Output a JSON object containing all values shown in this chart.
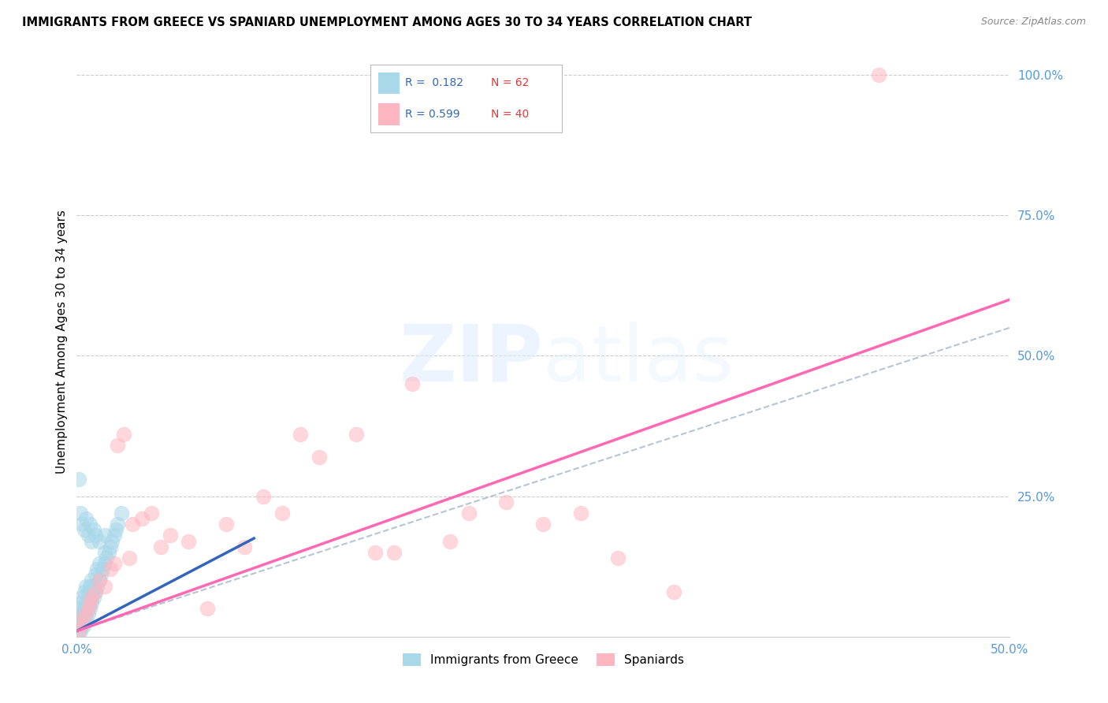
{
  "title": "IMMIGRANTS FROM GREECE VS SPANIARD UNEMPLOYMENT AMONG AGES 30 TO 34 YEARS CORRELATION CHART",
  "source": "Source: ZipAtlas.com",
  "ylabel": "Unemployment Among Ages 30 to 34 years",
  "xlim": [
    0.0,
    0.5
  ],
  "ylim": [
    0.0,
    1.05
  ],
  "xtick_vals": [
    0.0,
    0.1,
    0.2,
    0.3,
    0.4,
    0.5
  ],
  "xtick_labels": [
    "0.0%",
    "",
    "",
    "",
    "",
    "50.0%"
  ],
  "ytick_vals": [
    0.0,
    0.25,
    0.5,
    0.75,
    1.0
  ],
  "ytick_labels": [
    "",
    "25.0%",
    "50.0%",
    "75.0%",
    "100.0%"
  ],
  "color_blue": "#A8D8EA",
  "color_pink": "#FFB6C1",
  "color_blue_line": "#3366BB",
  "color_pink_line": "#FF69B4",
  "color_dash": "#AABBCC",
  "greece_x": [
    0.001,
    0.001,
    0.001,
    0.001,
    0.002,
    0.002,
    0.002,
    0.002,
    0.002,
    0.003,
    0.003,
    0.003,
    0.003,
    0.004,
    0.004,
    0.004,
    0.004,
    0.005,
    0.005,
    0.005,
    0.005,
    0.006,
    0.006,
    0.006,
    0.007,
    0.007,
    0.007,
    0.008,
    0.008,
    0.008,
    0.009,
    0.009,
    0.01,
    0.01,
    0.011,
    0.011,
    0.012,
    0.012,
    0.013,
    0.014,
    0.015,
    0.015,
    0.016,
    0.017,
    0.018,
    0.019,
    0.02,
    0.021,
    0.022,
    0.024,
    0.001,
    0.002,
    0.003,
    0.004,
    0.005,
    0.006,
    0.007,
    0.008,
    0.009,
    0.01,
    0.012,
    0.015
  ],
  "greece_y": [
    0.01,
    0.02,
    0.03,
    0.05,
    0.01,
    0.02,
    0.03,
    0.04,
    0.06,
    0.02,
    0.03,
    0.04,
    0.07,
    0.02,
    0.04,
    0.05,
    0.08,
    0.03,
    0.05,
    0.06,
    0.09,
    0.04,
    0.06,
    0.08,
    0.05,
    0.07,
    0.09,
    0.06,
    0.08,
    0.1,
    0.07,
    0.09,
    0.08,
    0.11,
    0.09,
    0.12,
    0.1,
    0.13,
    0.11,
    0.12,
    0.13,
    0.15,
    0.14,
    0.15,
    0.16,
    0.17,
    0.18,
    0.19,
    0.2,
    0.22,
    0.28,
    0.22,
    0.2,
    0.19,
    0.21,
    0.18,
    0.2,
    0.17,
    0.19,
    0.18,
    0.17,
    0.18
  ],
  "spain_x": [
    0.001,
    0.002,
    0.003,
    0.005,
    0.006,
    0.007,
    0.008,
    0.01,
    0.012,
    0.015,
    0.018,
    0.02,
    0.022,
    0.025,
    0.028,
    0.03,
    0.035,
    0.04,
    0.045,
    0.05,
    0.06,
    0.07,
    0.08,
    0.09,
    0.1,
    0.11,
    0.12,
    0.13,
    0.15,
    0.16,
    0.17,
    0.18,
    0.2,
    0.21,
    0.23,
    0.25,
    0.27,
    0.29,
    0.32,
    0.43
  ],
  "spain_y": [
    0.01,
    0.02,
    0.03,
    0.04,
    0.05,
    0.06,
    0.07,
    0.08,
    0.1,
    0.09,
    0.12,
    0.13,
    0.34,
    0.36,
    0.14,
    0.2,
    0.21,
    0.22,
    0.16,
    0.18,
    0.17,
    0.05,
    0.2,
    0.16,
    0.25,
    0.22,
    0.36,
    0.32,
    0.36,
    0.15,
    0.15,
    0.45,
    0.17,
    0.22,
    0.24,
    0.2,
    0.22,
    0.14,
    0.08,
    1.0
  ],
  "greece_line_x": [
    0.0,
    0.095
  ],
  "greece_line_y": [
    0.01,
    0.175
  ],
  "spain_line_x": [
    0.0,
    0.5
  ],
  "spain_line_y": [
    0.01,
    0.6
  ],
  "dash_line_x": [
    0.0,
    0.5
  ],
  "dash_line_y": [
    0.01,
    0.55
  ]
}
